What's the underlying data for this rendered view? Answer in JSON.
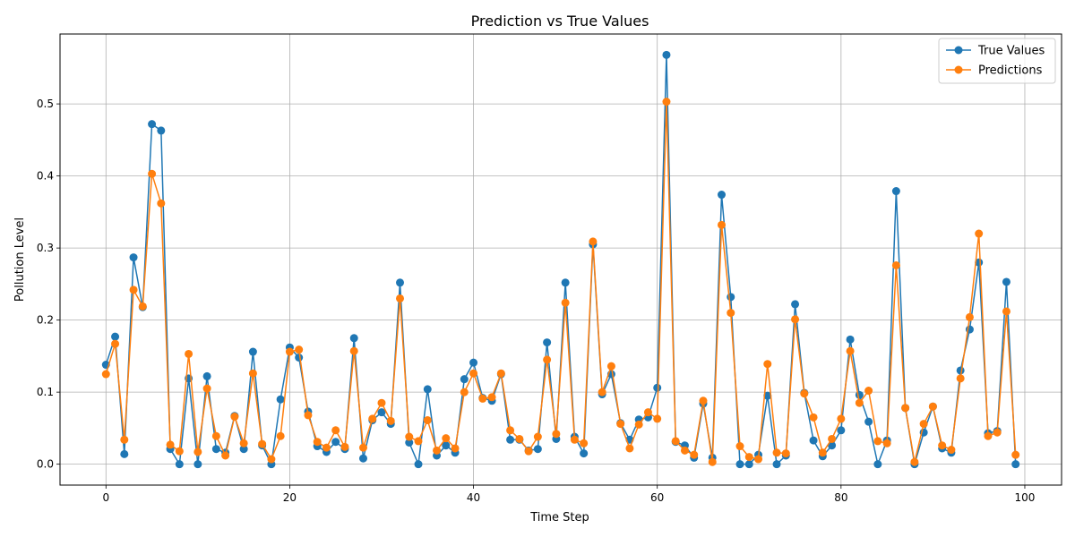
{
  "chart_data": {
    "type": "line",
    "title": "Prediction vs True Values",
    "xlabel": "Time Step",
    "ylabel": "Pollution Level",
    "xlim": [
      -5,
      104
    ],
    "ylim": [
      -0.029,
      0.597
    ],
    "xticks": [
      0,
      20,
      40,
      60,
      80,
      100
    ],
    "yticks": [
      0.0,
      0.1,
      0.2,
      0.3,
      0.4,
      0.5
    ],
    "xtick_labels": [
      "0",
      "20",
      "40",
      "60",
      "80",
      "100"
    ],
    "ytick_labels": [
      "0.0",
      "0.1",
      "0.2",
      "0.3",
      "0.4",
      "0.5"
    ],
    "grid": true,
    "legend_position": "top-right",
    "x": [
      0,
      1,
      2,
      3,
      4,
      5,
      6,
      7,
      8,
      9,
      10,
      11,
      12,
      13,
      14,
      15,
      16,
      17,
      18,
      19,
      20,
      21,
      22,
      23,
      24,
      25,
      26,
      27,
      28,
      29,
      30,
      31,
      32,
      33,
      34,
      35,
      36,
      37,
      38,
      39,
      40,
      41,
      42,
      43,
      44,
      45,
      46,
      47,
      48,
      49,
      50,
      51,
      52,
      53,
      54,
      55,
      56,
      57,
      58,
      59,
      60,
      61,
      62,
      63,
      64,
      65,
      66,
      67,
      68,
      69,
      70,
      71,
      72,
      73,
      74,
      75,
      76,
      77,
      78,
      79,
      80,
      81,
      82,
      83,
      84,
      85,
      86,
      87,
      88,
      89,
      90,
      91,
      92,
      93,
      94,
      95,
      96,
      97,
      98,
      99
    ],
    "series": [
      {
        "name": "True Values",
        "color": "#1f77b4",
        "values": [
          0.138,
          0.177,
          0.014,
          0.287,
          0.218,
          0.472,
          0.463,
          0.021,
          0.0,
          0.119,
          0.0,
          0.122,
          0.021,
          0.016,
          0.067,
          0.021,
          0.156,
          0.026,
          0.0,
          0.09,
          0.162,
          0.148,
          0.073,
          0.025,
          0.017,
          0.031,
          0.021,
          0.175,
          0.008,
          0.061,
          0.072,
          0.056,
          0.252,
          0.03,
          0.0,
          0.104,
          0.012,
          0.026,
          0.016,
          0.118,
          0.141,
          0.092,
          0.088,
          0.125,
          0.034,
          0.034,
          0.019,
          0.021,
          0.169,
          0.035,
          0.252,
          0.038,
          0.015,
          0.305,
          0.097,
          0.125,
          0.057,
          0.034,
          0.062,
          0.065,
          0.106,
          0.568,
          0.031,
          0.026,
          0.009,
          0.084,
          0.009,
          0.374,
          0.232,
          0.0,
          0.0,
          0.013,
          0.095,
          0.0,
          0.012,
          0.222,
          0.099,
          0.033,
          0.011,
          0.026,
          0.047,
          0.173,
          0.096,
          0.059,
          0.0,
          0.033,
          0.379,
          0.078,
          0.0,
          0.044,
          0.08,
          0.022,
          0.016,
          0.13,
          0.187,
          0.28,
          0.043,
          0.046,
          0.253,
          0.0
        ]
      },
      {
        "name": "Predictions",
        "color": "#ff7f0e",
        "values": [
          0.125,
          0.167,
          0.034,
          0.242,
          0.219,
          0.403,
          0.362,
          0.027,
          0.018,
          0.153,
          0.017,
          0.105,
          0.039,
          0.012,
          0.066,
          0.029,
          0.126,
          0.028,
          0.007,
          0.039,
          0.156,
          0.159,
          0.068,
          0.031,
          0.023,
          0.047,
          0.024,
          0.157,
          0.023,
          0.063,
          0.085,
          0.06,
          0.23,
          0.038,
          0.032,
          0.061,
          0.019,
          0.036,
          0.022,
          0.1,
          0.126,
          0.091,
          0.093,
          0.126,
          0.047,
          0.035,
          0.018,
          0.038,
          0.145,
          0.042,
          0.224,
          0.034,
          0.029,
          0.309,
          0.1,
          0.136,
          0.056,
          0.022,
          0.055,
          0.072,
          0.063,
          0.503,
          0.032,
          0.019,
          0.013,
          0.088,
          0.003,
          0.332,
          0.21,
          0.025,
          0.01,
          0.007,
          0.139,
          0.016,
          0.015,
          0.201,
          0.098,
          0.065,
          0.016,
          0.035,
          0.063,
          0.157,
          0.085,
          0.102,
          0.032,
          0.029,
          0.276,
          0.078,
          0.003,
          0.056,
          0.08,
          0.026,
          0.02,
          0.119,
          0.204,
          0.32,
          0.039,
          0.044,
          0.212,
          0.013
        ]
      }
    ]
  }
}
